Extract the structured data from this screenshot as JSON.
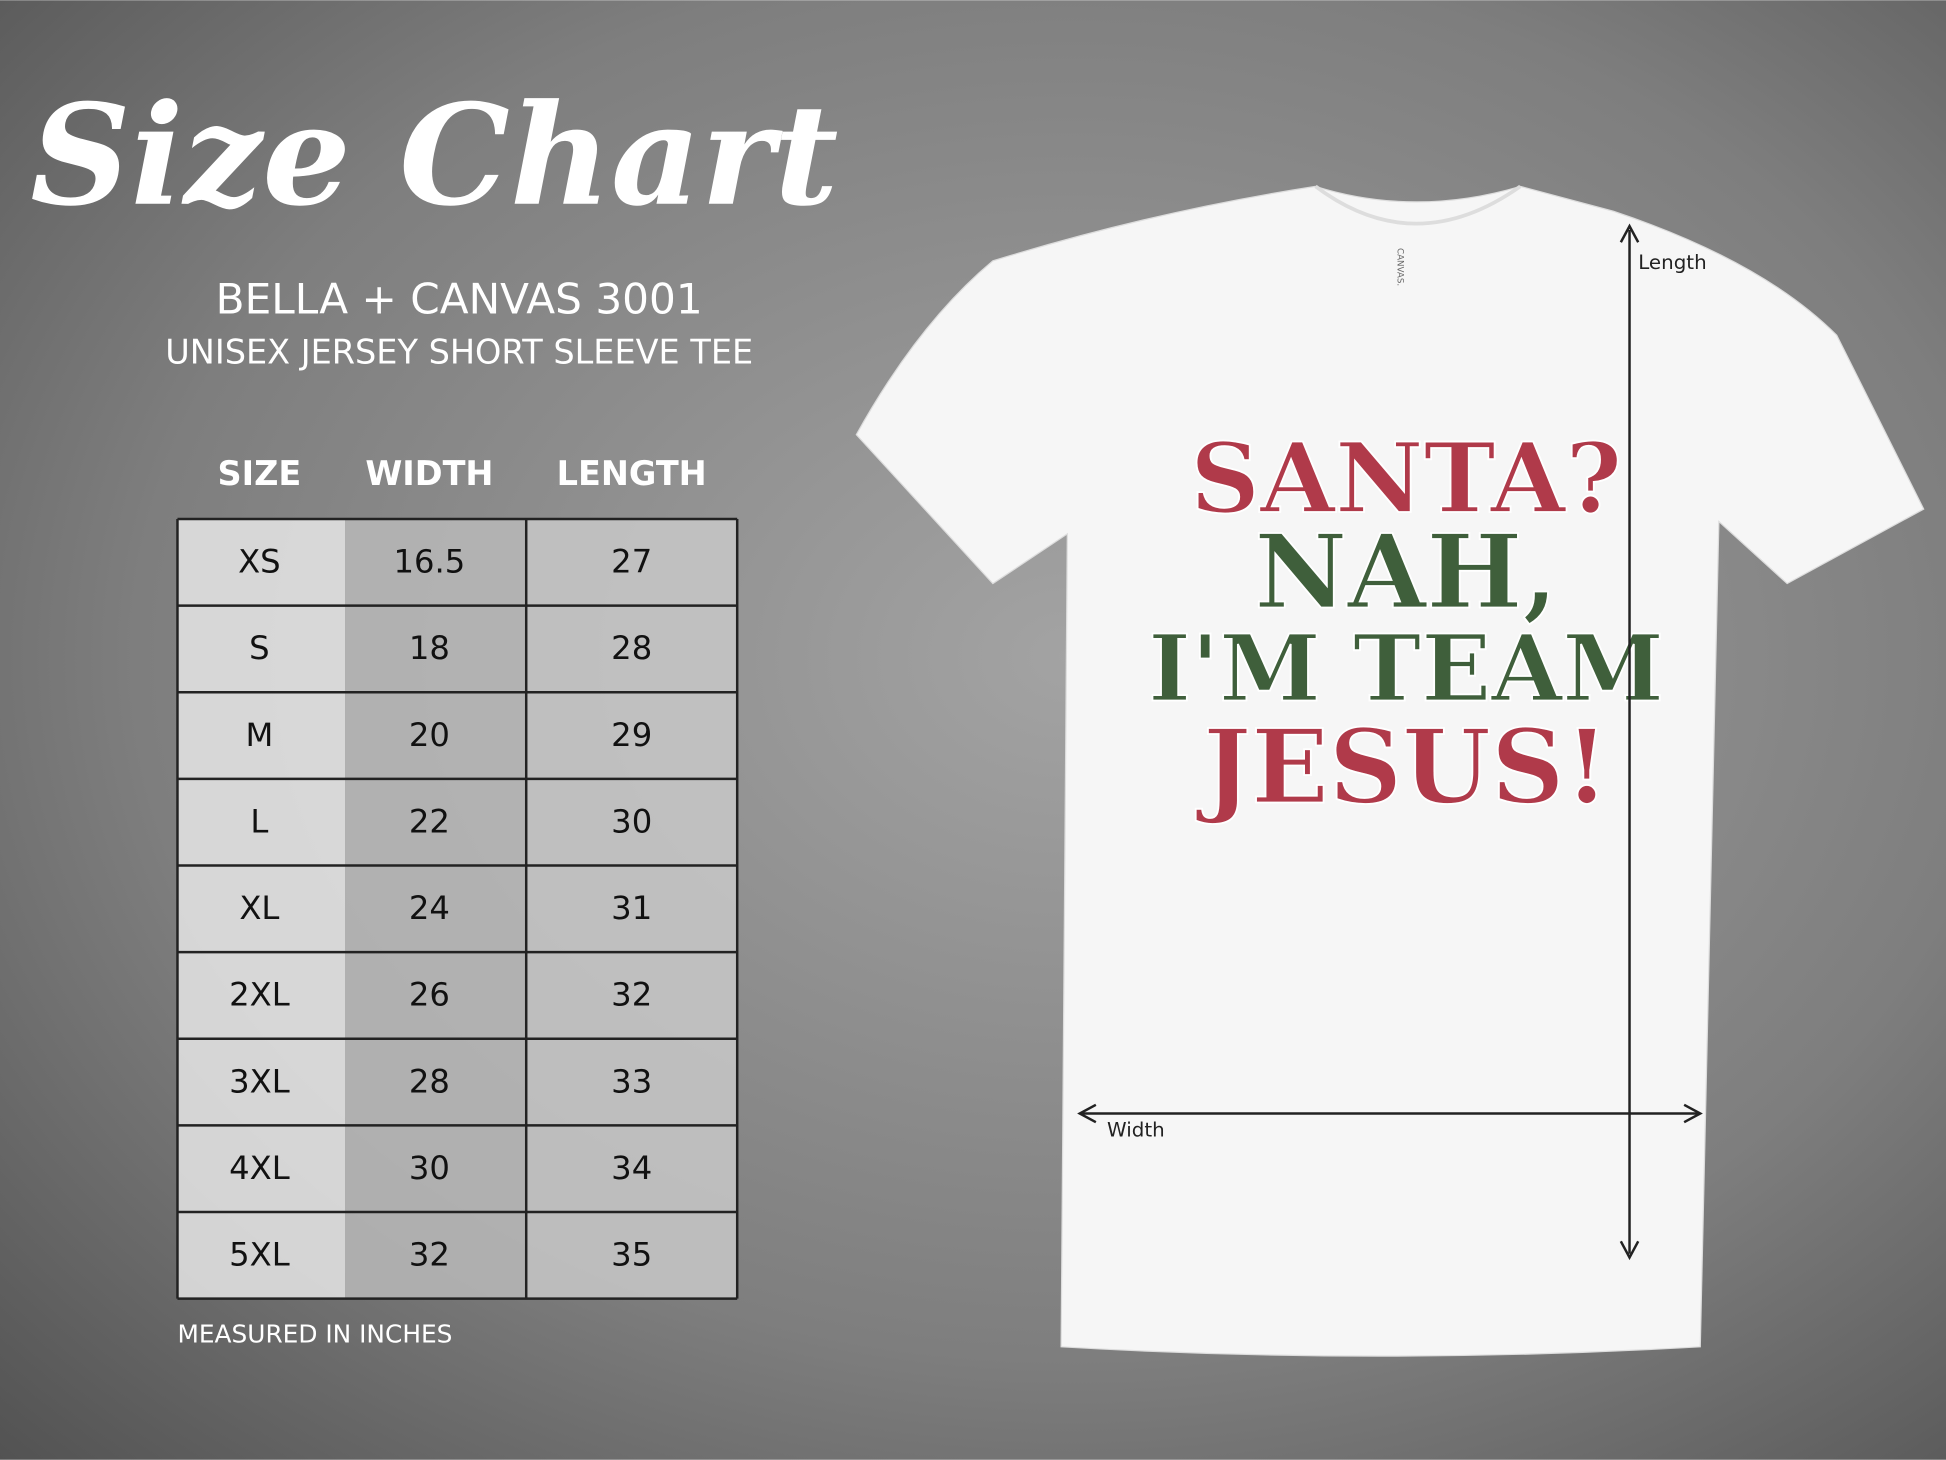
{
  "header": {
    "title": "Size Chart",
    "brand": "BELLA + CANVAS 3001",
    "subtitle": "UNISEX JERSEY SHORT SLEEVE TEE"
  },
  "table": {
    "columns": [
      "SIZE",
      "WIDTH",
      "LENGTH"
    ],
    "rows": [
      [
        "XS",
        16.5,
        27
      ],
      [
        "S",
        18,
        28
      ],
      [
        "M",
        20,
        29
      ],
      [
        "L",
        22,
        30
      ],
      [
        "XL",
        24,
        31
      ],
      [
        "2XL",
        26,
        32
      ],
      [
        "3XL",
        28,
        33
      ],
      [
        "4XL",
        30,
        34
      ],
      [
        "5XL",
        32,
        35
      ]
    ],
    "note": "MEASURED IN INCHES"
  },
  "shirt": {
    "tag": "CANVAS.",
    "print": [
      "SANTA?",
      "NAH,",
      "I'M TEAM",
      "JESUS!"
    ],
    "length_label": "Length",
    "width_label": "Width"
  }
}
